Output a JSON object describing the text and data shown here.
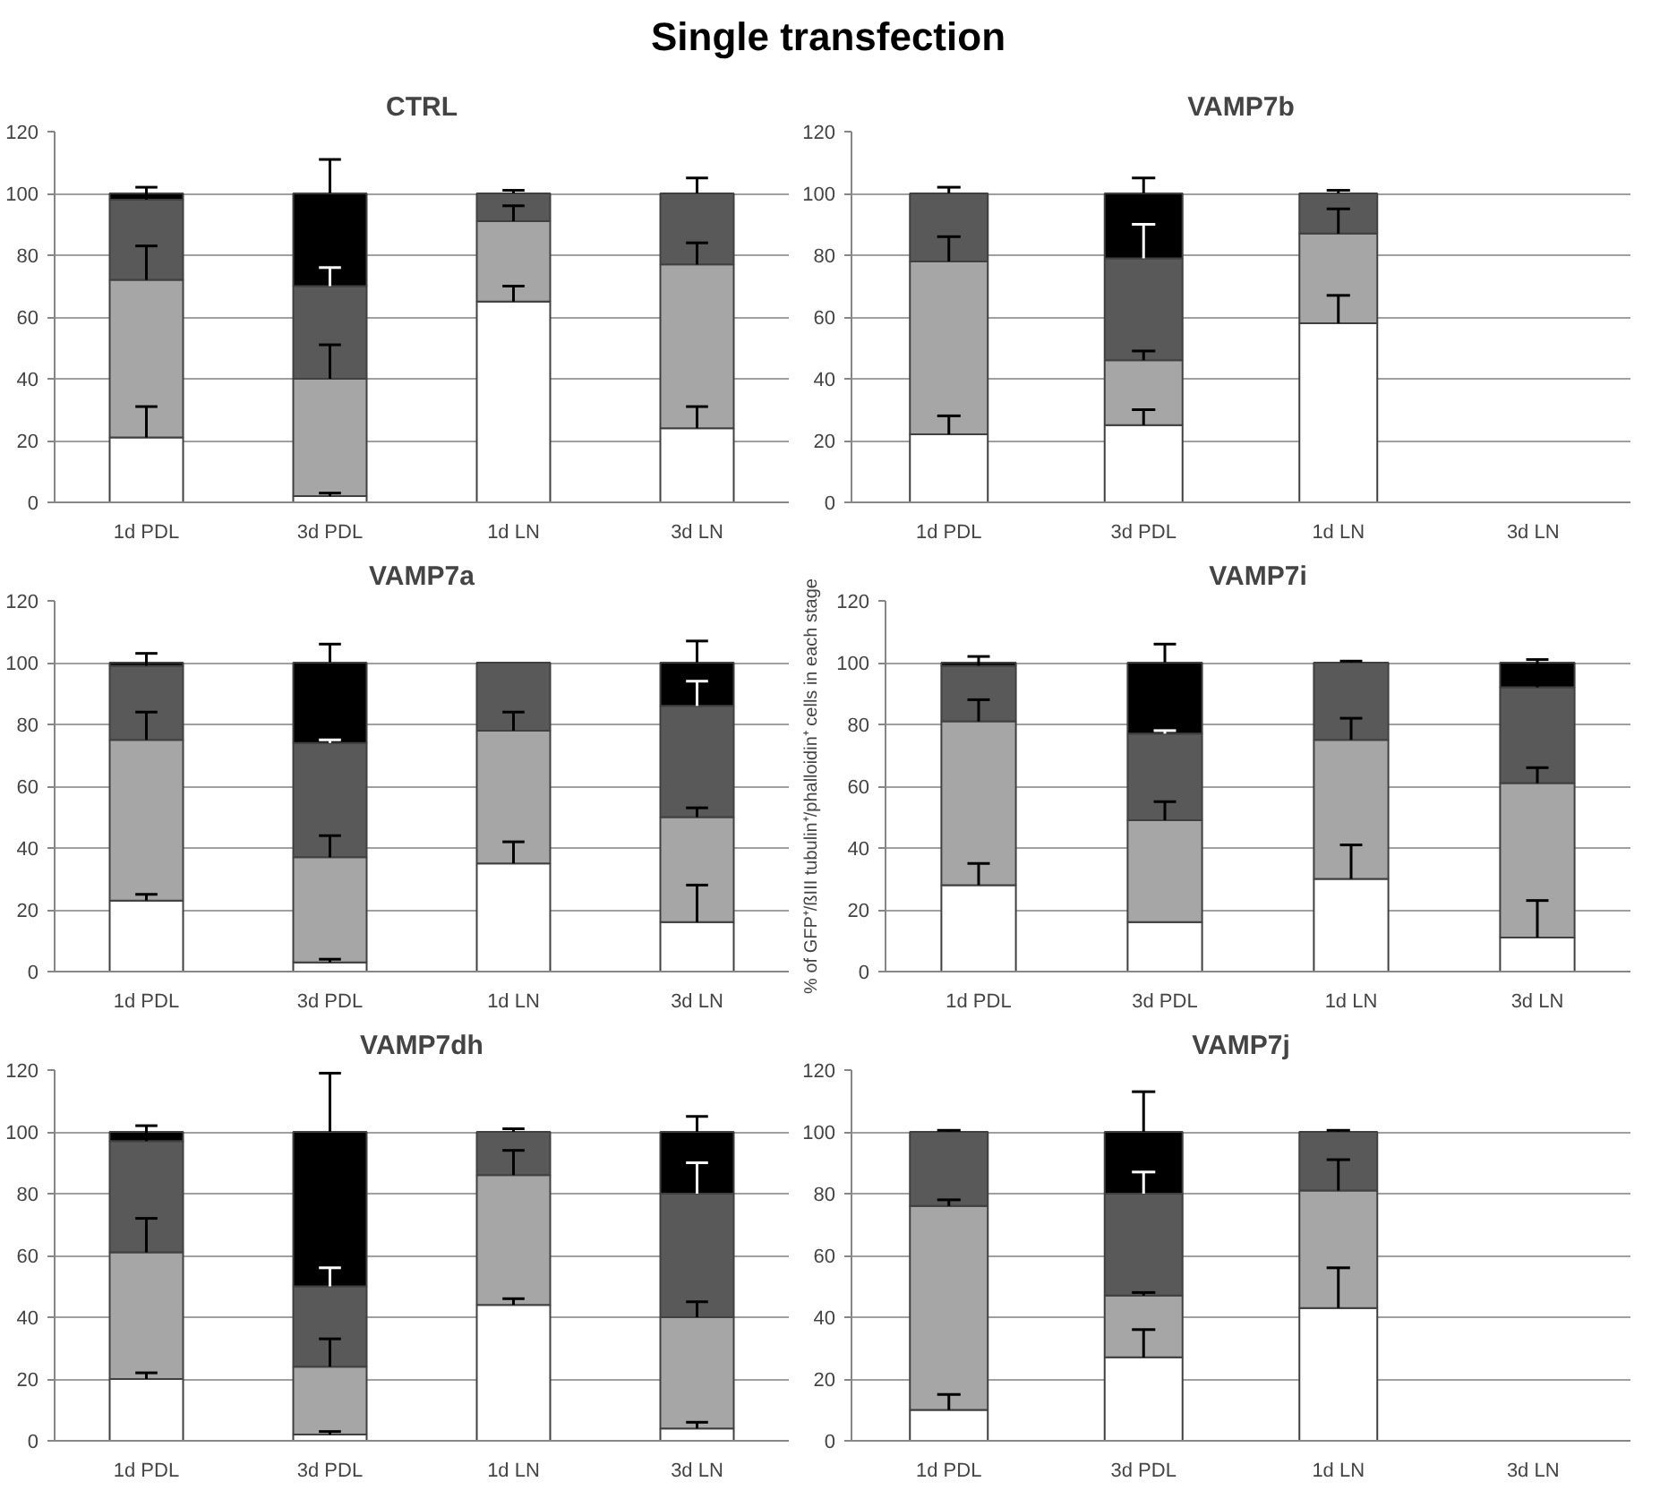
{
  "chart_data": [
    {
      "type": "bar",
      "stacked": true,
      "title": "CTRL",
      "annotations": [
        "Single transfection"
      ],
      "categories": [
        "1d PDL",
        "3d PDL",
        "1d LN",
        "3d LN"
      ],
      "ylim": [
        0,
        120
      ],
      "yticks": [
        0,
        20,
        40,
        60,
        80,
        100,
        120
      ],
      "grid": "y",
      "series": [
        {
          "color": "#ffffff",
          "values": [
            21,
            2,
            65,
            24
          ],
          "errors": [
            [
              21,
              31
            ],
            [
              2,
              3
            ],
            [
              65,
              70
            ],
            [
              24,
              31
            ]
          ]
        },
        {
          "color": "#a6a6a6",
          "values": [
            51,
            38,
            26,
            53
          ],
          "errors": [
            [
              72,
              83
            ],
            [
              40,
              51
            ],
            [
              91,
              96
            ],
            [
              77,
              84
            ]
          ]
        },
        {
          "color": "#595959",
          "values": [
            26,
            30,
            9,
            23
          ],
          "errors": [
            [
              98,
              102
            ],
            [
              70,
              76
            ],
            [
              100,
              101
            ],
            [
              100,
              105
            ]
          ]
        },
        {
          "color": "#000000",
          "values": [
            2,
            30,
            0,
            0
          ],
          "errors": [
            null,
            [
              100,
              111
            ],
            null,
            null
          ]
        }
      ]
    },
    {
      "type": "bar",
      "stacked": true,
      "title": "VAMP7b",
      "categories": [
        "1d PDL",
        "3d PDL",
        "1d LN",
        "3d LN"
      ],
      "ylim": [
        0,
        120
      ],
      "yticks": [
        0,
        20,
        40,
        60,
        80,
        100,
        120
      ],
      "grid": "y",
      "series": [
        {
          "color": "#ffffff",
          "values": [
            22,
            25,
            58,
            null
          ],
          "errors": [
            [
              22,
              28
            ],
            [
              25,
              30
            ],
            [
              58,
              67
            ],
            null
          ]
        },
        {
          "color": "#a6a6a6",
          "values": [
            56,
            21,
            29,
            null
          ],
          "errors": [
            [
              78,
              86
            ],
            [
              46,
              49
            ],
            [
              87,
              95
            ],
            null
          ]
        },
        {
          "color": "#595959",
          "values": [
            22,
            33,
            13,
            null
          ],
          "errors": [
            [
              100,
              102
            ],
            [
              79,
              90
            ],
            [
              100,
              101
            ],
            null
          ]
        },
        {
          "color": "#000000",
          "values": [
            0,
            21,
            0,
            null
          ],
          "errors": [
            null,
            [
              100,
              105
            ],
            null,
            null
          ]
        }
      ]
    },
    {
      "type": "bar",
      "stacked": true,
      "title": "VAMP7a",
      "categories": [
        "1d PDL",
        "3d PDL",
        "1d LN",
        "3d LN"
      ],
      "ylim": [
        0,
        120
      ],
      "yticks": [
        0,
        20,
        40,
        60,
        80,
        100,
        120
      ],
      "grid": "y",
      "series": [
        {
          "color": "#ffffff",
          "values": [
            23,
            3,
            35,
            16
          ],
          "errors": [
            [
              23,
              25
            ],
            [
              3,
              4
            ],
            [
              35,
              42
            ],
            [
              16,
              28
            ]
          ]
        },
        {
          "color": "#a6a6a6",
          "values": [
            52,
            34,
            43,
            34
          ],
          "errors": [
            [
              75,
              84
            ],
            [
              37,
              44
            ],
            [
              78,
              84
            ],
            [
              50,
              53
            ]
          ]
        },
        {
          "color": "#595959",
          "values": [
            24,
            37,
            22,
            36
          ],
          "errors": [
            [
              99,
              103
            ],
            [
              74,
              75
            ],
            null,
            [
              86,
              94
            ]
          ]
        },
        {
          "color": "#000000",
          "values": [
            1,
            26,
            0,
            14
          ],
          "errors": [
            null,
            [
              100,
              106
            ],
            null,
            [
              100,
              107
            ]
          ]
        }
      ]
    },
    {
      "type": "bar",
      "stacked": true,
      "title": "VAMP7i",
      "ylabel": "% of GFP⁺/ßIII tubulin⁺/phalloidin⁺ cells in each stage",
      "categories": [
        "1d PDL",
        "3d PDL",
        "1d LN",
        "3d LN"
      ],
      "ylim": [
        0,
        120
      ],
      "yticks": [
        0,
        20,
        40,
        60,
        80,
        100,
        120
      ],
      "grid": "y",
      "series": [
        {
          "color": "#ffffff",
          "values": [
            28,
            16,
            30,
            11
          ],
          "errors": [
            [
              28,
              35
            ],
            null,
            [
              30,
              41
            ],
            [
              11,
              23
            ]
          ]
        },
        {
          "color": "#a6a6a6",
          "values": [
            53,
            33,
            45,
            50
          ],
          "errors": [
            [
              81,
              88
            ],
            [
              49,
              55
            ],
            [
              75,
              82
            ],
            [
              61,
              66
            ]
          ]
        },
        {
          "color": "#595959",
          "values": [
            18,
            28,
            25,
            31
          ],
          "errors": [
            [
              99,
              102
            ],
            [
              77,
              78
            ],
            [
              100,
              100.5
            ],
            [
              92,
              101
            ]
          ]
        },
        {
          "color": "#000000",
          "values": [
            1,
            23,
            0,
            8
          ],
          "errors": [
            null,
            [
              100,
              106
            ],
            null,
            null
          ]
        }
      ]
    },
    {
      "type": "bar",
      "stacked": true,
      "title": "VAMP7dh",
      "categories": [
        "1d PDL",
        "3d PDL",
        "1d LN",
        "3d LN"
      ],
      "ylim": [
        0,
        120
      ],
      "yticks": [
        0,
        20,
        40,
        60,
        80,
        100,
        120
      ],
      "grid": "y",
      "series": [
        {
          "color": "#ffffff",
          "values": [
            20,
            2,
            44,
            4
          ],
          "errors": [
            [
              20,
              22
            ],
            [
              2,
              3
            ],
            [
              44,
              46
            ],
            [
              4,
              6
            ]
          ]
        },
        {
          "color": "#a6a6a6",
          "values": [
            41,
            22,
            42,
            36
          ],
          "errors": [
            [
              61,
              72
            ],
            [
              24,
              33
            ],
            [
              86,
              94
            ],
            [
              40,
              45
            ]
          ]
        },
        {
          "color": "#595959",
          "values": [
            36,
            26,
            14,
            40
          ],
          "errors": [
            [
              97,
              102
            ],
            [
              50,
              56
            ],
            [
              100,
              101
            ],
            [
              80,
              90
            ]
          ]
        },
        {
          "color": "#000000",
          "values": [
            3,
            50,
            0,
            20
          ],
          "errors": [
            null,
            [
              100,
              119
            ],
            null,
            [
              100,
              105
            ]
          ]
        }
      ]
    },
    {
      "type": "bar",
      "stacked": true,
      "title": "VAMP7j",
      "categories": [
        "1d PDL",
        "3d PDL",
        "1d LN",
        "3d LN"
      ],
      "ylim": [
        0,
        120
      ],
      "yticks": [
        0,
        20,
        40,
        60,
        80,
        100,
        120
      ],
      "grid": "y",
      "series": [
        {
          "color": "#ffffff",
          "values": [
            10,
            27,
            43,
            null
          ],
          "errors": [
            [
              10,
              15
            ],
            [
              27,
              36
            ],
            [
              43,
              56
            ],
            null
          ]
        },
        {
          "color": "#a6a6a6",
          "values": [
            66,
            20,
            38,
            null
          ],
          "errors": [
            [
              76,
              78
            ],
            [
              47,
              48
            ],
            [
              81,
              91
            ],
            null
          ]
        },
        {
          "color": "#595959",
          "values": [
            24,
            33,
            19,
            null
          ],
          "errors": [
            [
              100,
              100.5
            ],
            [
              80,
              87
            ],
            [
              100,
              100.5
            ],
            null
          ]
        },
        {
          "color": "#000000",
          "values": [
            0,
            20,
            0,
            null
          ],
          "errors": [
            null,
            [
              100,
              113
            ],
            null,
            null
          ]
        }
      ]
    }
  ]
}
